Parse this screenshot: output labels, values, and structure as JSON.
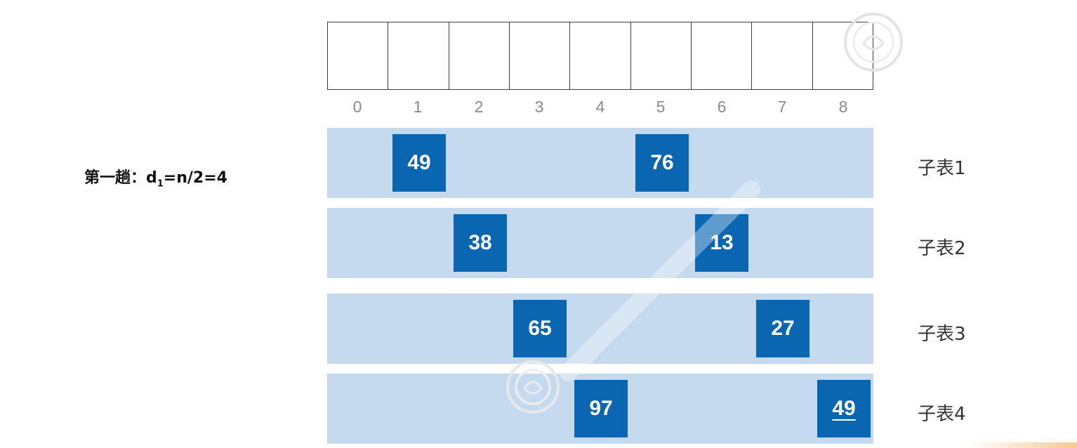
{
  "pass_label": {
    "prefix": "第一趟：d",
    "subscript": "1",
    "suffix": "=n/2=4"
  },
  "indices": [
    "0",
    "1",
    "2",
    "3",
    "4",
    "5",
    "6",
    "7",
    "8"
  ],
  "sublists": [
    {
      "label": "子表1",
      "elements": [
        {
          "index": 1,
          "value": "49",
          "underlined": false
        },
        {
          "index": 5,
          "value": "76",
          "underlined": false
        }
      ]
    },
    {
      "label": "子表2",
      "elements": [
        {
          "index": 2,
          "value": "38",
          "underlined": false
        },
        {
          "index": 6,
          "value": "13",
          "underlined": false
        }
      ]
    },
    {
      "label": "子表3",
      "elements": [
        {
          "index": 3,
          "value": "65",
          "underlined": false
        },
        {
          "index": 7,
          "value": "27",
          "underlined": false
        }
      ]
    },
    {
      "label": "子表4",
      "elements": [
        {
          "index": 4,
          "value": "97",
          "underlined": false
        },
        {
          "index": 8,
          "value": "49",
          "underlined": true
        }
      ]
    }
  ],
  "colors": {
    "band": "#c5daef",
    "box": "#0b66b2",
    "box_text": "#ffffff"
  }
}
